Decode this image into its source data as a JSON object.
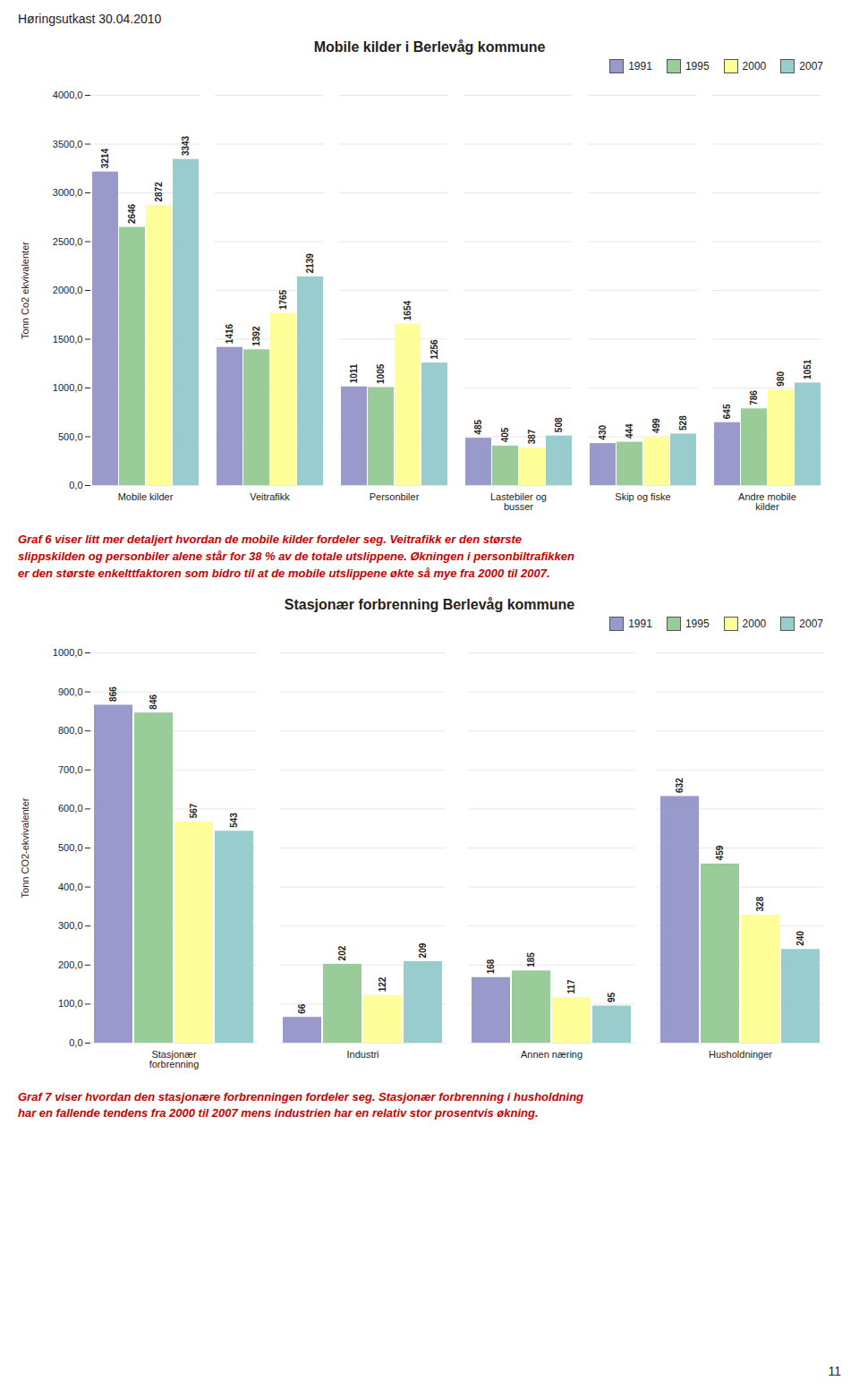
{
  "header": "Høringsutkast 30.04.2010",
  "page_number": "11",
  "chart_data": [
    {
      "type": "bar",
      "title": "Mobile kilder i Berlevåg kommune",
      "ylabel": "Tonn Co2 ekvivalenter",
      "categories": [
        "Mobile kilder",
        "Veitrafikk",
        "Personbiler",
        "Lastebiler og\nbusser",
        "Skip og fiske",
        "Andre mobile\nkilder"
      ],
      "series": [
        {
          "name": "1991",
          "color": "#9999CC",
          "values": [
            3214,
            1416,
            1011,
            485,
            430,
            645
          ]
        },
        {
          "name": "1995",
          "color": "#99CC99",
          "values": [
            2646,
            1392,
            1005,
            405,
            444,
            786
          ]
        },
        {
          "name": "2000",
          "color": "#FFFF99",
          "values": [
            2872,
            1765,
            1654,
            387,
            499,
            980
          ]
        },
        {
          "name": "2007",
          "color": "#99CCCC",
          "values": [
            3343,
            2139,
            1256,
            508,
            528,
            1051
          ]
        }
      ],
      "ylim": [
        0,
        4000
      ],
      "yticks": [
        {
          "value": 0,
          "label": "0,0"
        },
        {
          "value": 500,
          "label": "500,0"
        },
        {
          "value": 1000,
          "label": "1000,0"
        },
        {
          "value": 1500,
          "label": "1500,0"
        },
        {
          "value": 2000,
          "label": "2000,0"
        },
        {
          "value": 2500,
          "label": "2500,0"
        },
        {
          "value": 3000,
          "label": "3000,0"
        },
        {
          "value": 3500,
          "label": "3500,0"
        },
        {
          "value": 4000,
          "label": "4000,0"
        }
      ],
      "grid": true,
      "legend": "upper right",
      "data_labels": true,
      "caption": "Graf 6 viser litt mer detaljert hvordan de mobile kilder fordeler seg. Veitrafikk er den største\nslippskilden og personbiler alene står for 38 % av de totale utslippene. Økningen i personbiltrafikken\ner den største enkelttfaktoren som bidro til at de mobile utslippene økte så mye fra 2000 til 2007."
    },
    {
      "type": "bar",
      "title": "Stasjonær forbrenning Berlevåg kommune",
      "ylabel": "Tonn CO2-ekvivalenter",
      "categories": [
        "Stasjonær\nforbrenning",
        "Industri",
        "Annen næring",
        "Husholdninger"
      ],
      "series": [
        {
          "name": "1991",
          "color": "#9999CC",
          "values": [
            866,
            66,
            168,
            632
          ]
        },
        {
          "name": "1995",
          "color": "#99CC99",
          "values": [
            846,
            202,
            185,
            459
          ]
        },
        {
          "name": "2000",
          "color": "#FFFF99",
          "values": [
            567,
            122,
            117,
            328
          ]
        },
        {
          "name": "2007",
          "color": "#99CCCC",
          "values": [
            543,
            209,
            95,
            240
          ]
        }
      ],
      "ylim": [
        0,
        1000
      ],
      "yticks": [
        {
          "value": 0,
          "label": "0,0"
        },
        {
          "value": 100,
          "label": "100,0"
        },
        {
          "value": 200,
          "label": "200,0"
        },
        {
          "value": 300,
          "label": "300,0"
        },
        {
          "value": 400,
          "label": "400,0"
        },
        {
          "value": 500,
          "label": "500,0"
        },
        {
          "value": 600,
          "label": "600,0"
        },
        {
          "value": 700,
          "label": "700,0"
        },
        {
          "value": 800,
          "label": "800,0"
        },
        {
          "value": 900,
          "label": "900,0"
        },
        {
          "value": 1000,
          "label": "1000,0"
        }
      ],
      "grid": true,
      "legend": "upper right",
      "data_labels": true,
      "caption": "Graf 7 viser hvordan den stasjonære forbrenningen fordeler seg. Stasjonær forbrenning i husholdning\nhar en fallende tendens fra 2000 til 2007 mens industrien har en relativ stor prosentvis økning."
    }
  ]
}
